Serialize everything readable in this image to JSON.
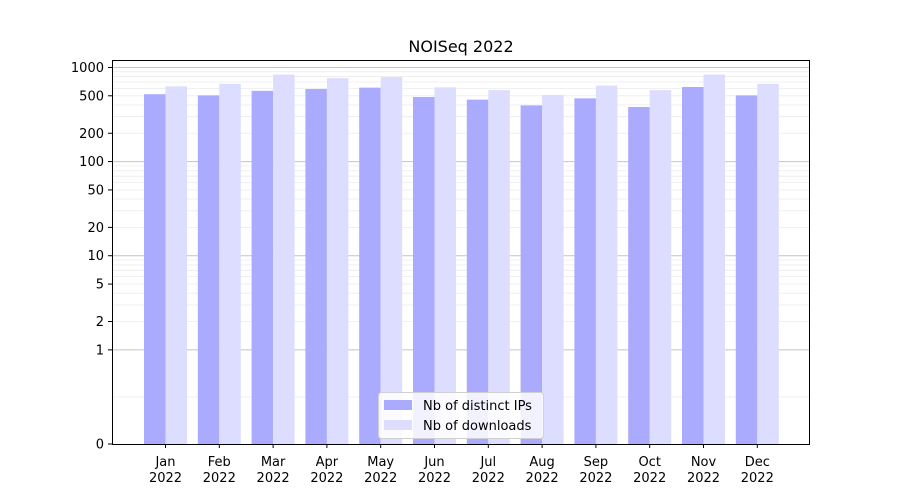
{
  "chart_data": {
    "type": "bar",
    "title": "NOISeq 2022",
    "xlabel": "",
    "ylabel": "",
    "yscale": "symlog",
    "ylim": [
      0,
      1200
    ],
    "grid": "horizontal",
    "legend_position": "bottom-center",
    "categories": [
      [
        "Jan",
        "2022"
      ],
      [
        "Feb",
        "2022"
      ],
      [
        "Mar",
        "2022"
      ],
      [
        "Apr",
        "2022"
      ],
      [
        "May",
        "2022"
      ],
      [
        "Jun",
        "2022"
      ],
      [
        "Jul",
        "2022"
      ],
      [
        "Aug",
        "2022"
      ],
      [
        "Sep",
        "2022"
      ],
      [
        "Oct",
        "2022"
      ],
      [
        "Nov",
        "2022"
      ],
      [
        "Dec",
        "2022"
      ]
    ],
    "yticks": [
      {
        "value": 0,
        "label": "0"
      },
      {
        "value": 1,
        "label": "1"
      },
      {
        "value": 2,
        "label": "2"
      },
      {
        "value": 5,
        "label": "5"
      },
      {
        "value": 10,
        "label": "10"
      },
      {
        "value": 20,
        "label": "20"
      },
      {
        "value": 50,
        "label": "50"
      },
      {
        "value": 100,
        "label": "100"
      },
      {
        "value": 200,
        "label": "200"
      },
      {
        "value": 500,
        "label": "500"
      },
      {
        "value": 1000,
        "label": "1000"
      }
    ],
    "series": [
      {
        "name": "Nb of distinct IPs",
        "color": "#aaaaff",
        "values": [
          520,
          505,
          565,
          590,
          610,
          485,
          455,
          395,
          470,
          380,
          620,
          505
        ]
      },
      {
        "name": "Nb of downloads",
        "color": "#ddddff",
        "values": [
          630,
          670,
          840,
          770,
          790,
          615,
          575,
          510,
          640,
          575,
          840,
          670
        ]
      }
    ]
  }
}
